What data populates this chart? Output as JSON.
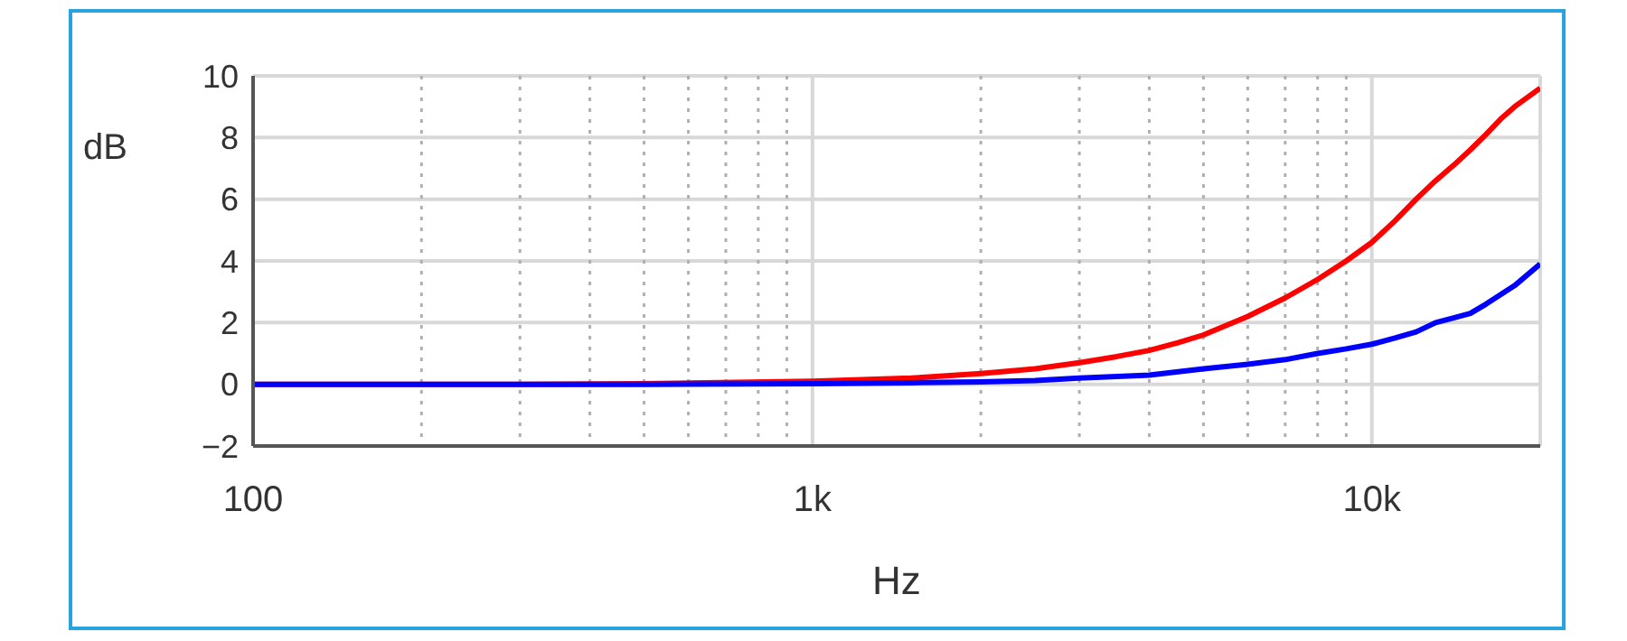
{
  "chart_data": {
    "type": "line",
    "xlabel": "Hz",
    "ylabel": "dB",
    "log": "x",
    "grid": true,
    "marker": "none",
    "line_style": "solid",
    "xlim": [
      100,
      20000
    ],
    "xticks": [
      100,
      {
        "value": 200,
        "label": null
      },
      {
        "value": 300,
        "label": null
      },
      {
        "value": 400,
        "label": null
      },
      {
        "value": 500,
        "label": null
      },
      {
        "value": 600,
        "label": null
      },
      {
        "value": 700,
        "label": null
      },
      {
        "value": 800,
        "label": null
      },
      {
        "value": 900,
        "label": null
      },
      {
        "value": 1000,
        "label": "1k"
      },
      {
        "value": 2000,
        "label": null
      },
      {
        "value": 3000,
        "label": null
      },
      {
        "value": 4000,
        "label": null
      },
      {
        "value": 5000,
        "label": null
      },
      {
        "value": 6000,
        "label": null
      },
      {
        "value": 7000,
        "label": null
      },
      {
        "value": 8000,
        "label": null
      },
      {
        "value": 9000,
        "label": null
      },
      {
        "value": 10000,
        "label": "10k"
      }
    ],
    "ylim": [
      -2,
      10
    ],
    "yticks": [
      {
        "value": -2,
        "label": "−2"
      },
      0,
      2,
      4,
      6,
      8,
      10
    ],
    "series": [
      {
        "color": "#ff0000",
        "x": [
          100,
          300,
          500,
          1000,
          1500,
          2000,
          2500,
          3000,
          3500,
          4000,
          4500,
          5000,
          6000,
          7000,
          8000,
          9000,
          10000,
          11000,
          12000,
          13000,
          14000,
          15000,
          16000,
          17000,
          18000,
          20000
        ],
        "values": [
          0,
          0,
          0.02,
          0.1,
          0.2,
          0.35,
          0.5,
          0.7,
          0.9,
          1.1,
          1.35,
          1.6,
          2.2,
          2.8,
          3.4,
          4.0,
          4.6,
          5.3,
          6.0,
          6.6,
          7.1,
          7.6,
          8.1,
          8.6,
          9.0,
          9.6
        ]
      },
      {
        "color": "#0000ff",
        "x": [
          100,
          300,
          500,
          1000,
          1500,
          2000,
          2500,
          3000,
          4000,
          5000,
          6000,
          7000,
          8000,
          9000,
          10000,
          11000,
          12000,
          13000,
          14000,
          15000,
          16000,
          18000,
          20000
        ],
        "values": [
          0,
          0,
          0,
          0.02,
          0.05,
          0.08,
          0.12,
          0.2,
          0.3,
          0.5,
          0.65,
          0.8,
          1.0,
          1.15,
          1.3,
          1.5,
          1.7,
          2.0,
          2.15,
          2.3,
          2.6,
          3.2,
          3.9
        ]
      }
    ]
  }
}
